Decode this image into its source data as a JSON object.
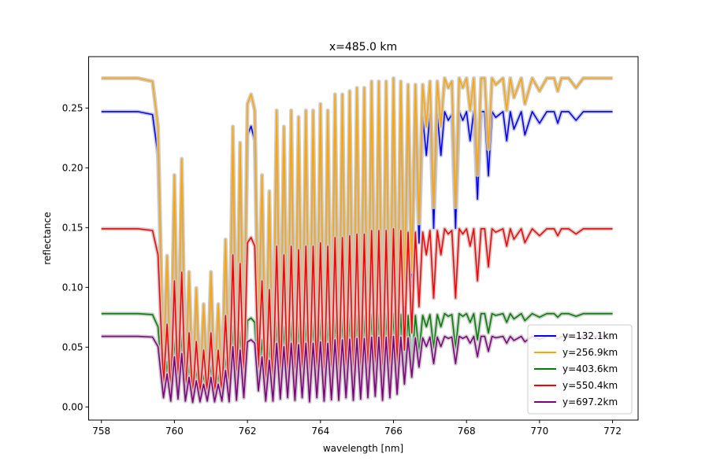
{
  "chart_data": {
    "type": "line",
    "title": "x=485.0 km",
    "xlabel": "wavelength [nm]",
    "ylabel": "reflectance",
    "xlim": [
      757.65,
      772.7
    ],
    "ylim": [
      -0.011,
      0.293
    ],
    "xticks": [
      758,
      760,
      762,
      764,
      766,
      768,
      770,
      772
    ],
    "yticks": [
      0.0,
      0.05,
      0.1,
      0.15,
      0.2,
      0.25
    ],
    "ytick_labels": [
      "0.00",
      "0.05",
      "0.10",
      "0.15",
      "0.20",
      "0.25"
    ],
    "grid": false,
    "legend_position": "lower-right",
    "band_color": "#c8c8c8",
    "series": [
      {
        "name": "y=132.1km",
        "color": "#0000ff",
        "continuum": 0.247,
        "dip_floor": 0.003
      },
      {
        "name": "y=256.9km",
        "color": "#ffa500",
        "continuum": 0.275,
        "dip_floor": 0.005
      },
      {
        "name": "y=403.6km",
        "color": "#008000",
        "continuum": 0.078,
        "dip_floor": 0.005
      },
      {
        "name": "y=550.4km",
        "color": "#ff0000",
        "continuum": 0.149,
        "dip_floor": 0.004
      },
      {
        "name": "y=697.2km",
        "color": "#800080",
        "continuum": 0.059,
        "dip_floor": 0.002
      }
    ],
    "x": [
      758.0,
      759.0,
      759.4,
      759.55,
      759.7,
      759.8,
      759.9,
      760.0,
      760.1,
      760.2,
      760.3,
      760.4,
      760.5,
      760.6,
      760.7,
      760.8,
      760.9,
      761.0,
      761.1,
      761.2,
      761.3,
      761.4,
      761.5,
      761.6,
      761.7,
      761.8,
      761.9,
      762.0,
      762.1,
      762.2,
      762.3,
      762.4,
      762.5,
      762.6,
      762.7,
      762.8,
      762.9,
      763.0,
      763.1,
      763.2,
      763.3,
      763.4,
      763.5,
      763.6,
      763.7,
      763.8,
      763.9,
      764.0,
      764.1,
      764.2,
      764.3,
      764.4,
      764.5,
      764.6,
      764.7,
      764.8,
      764.9,
      765.0,
      765.1,
      765.2,
      765.3,
      765.4,
      765.5,
      765.6,
      765.7,
      765.8,
      765.9,
      766.0,
      766.1,
      766.2,
      766.3,
      766.4,
      766.5,
      766.6,
      766.7,
      766.8,
      766.9,
      767.0,
      767.1,
      767.2,
      767.3,
      767.4,
      767.5,
      767.6,
      767.7,
      767.8,
      767.9,
      768.0,
      768.1,
      768.2,
      768.3,
      768.4,
      768.5,
      768.6,
      768.7,
      768.8,
      769.0,
      769.1,
      769.2,
      769.3,
      769.5,
      769.6,
      769.8,
      770.0,
      770.2,
      770.4,
      770.5,
      770.6,
      770.8,
      771.0,
      771.2,
      771.4,
      771.6,
      771.8,
      772.0
    ],
    "relative_profile": [
      1.0,
      1.0,
      0.99,
      0.85,
      0.1,
      0.45,
      0.05,
      0.7,
      0.08,
      0.75,
      0.05,
      0.4,
      0.03,
      0.35,
      0.04,
      0.3,
      0.05,
      0.4,
      0.04,
      0.3,
      0.05,
      0.5,
      0.04,
      0.85,
      0.06,
      0.8,
      0.1,
      0.92,
      0.95,
      0.9,
      0.2,
      0.7,
      0.05,
      0.65,
      0.05,
      0.9,
      0.08,
      0.85,
      0.1,
      0.9,
      0.06,
      0.88,
      0.1,
      0.9,
      0.04,
      0.9,
      0.1,
      0.92,
      0.05,
      0.9,
      0.07,
      0.95,
      0.06,
      0.95,
      0.1,
      0.96,
      0.06,
      0.97,
      0.08,
      0.97,
      0.1,
      0.99,
      0.12,
      0.99,
      0.06,
      0.99,
      0.1,
      1.0,
      0.15,
      0.99,
      0.3,
      0.98,
      0.4,
      0.98,
      0.55,
      0.98,
      0.85,
      0.99,
      0.6,
      0.99,
      0.85,
      1.0,
      0.97,
      0.99,
      0.6,
      1.0,
      0.97,
      1.0,
      0.9,
      1.0,
      0.7,
      1.0,
      1.0,
      0.78,
      1.0,
      0.98,
      1.0,
      0.9,
      1.0,
      0.94,
      1.0,
      0.92,
      1.0,
      0.96,
      1.0,
      1.0,
      0.96,
      1.0,
      1.0,
      0.97,
      1.0,
      1.0,
      1.0,
      1.0,
      1.0
    ]
  }
}
